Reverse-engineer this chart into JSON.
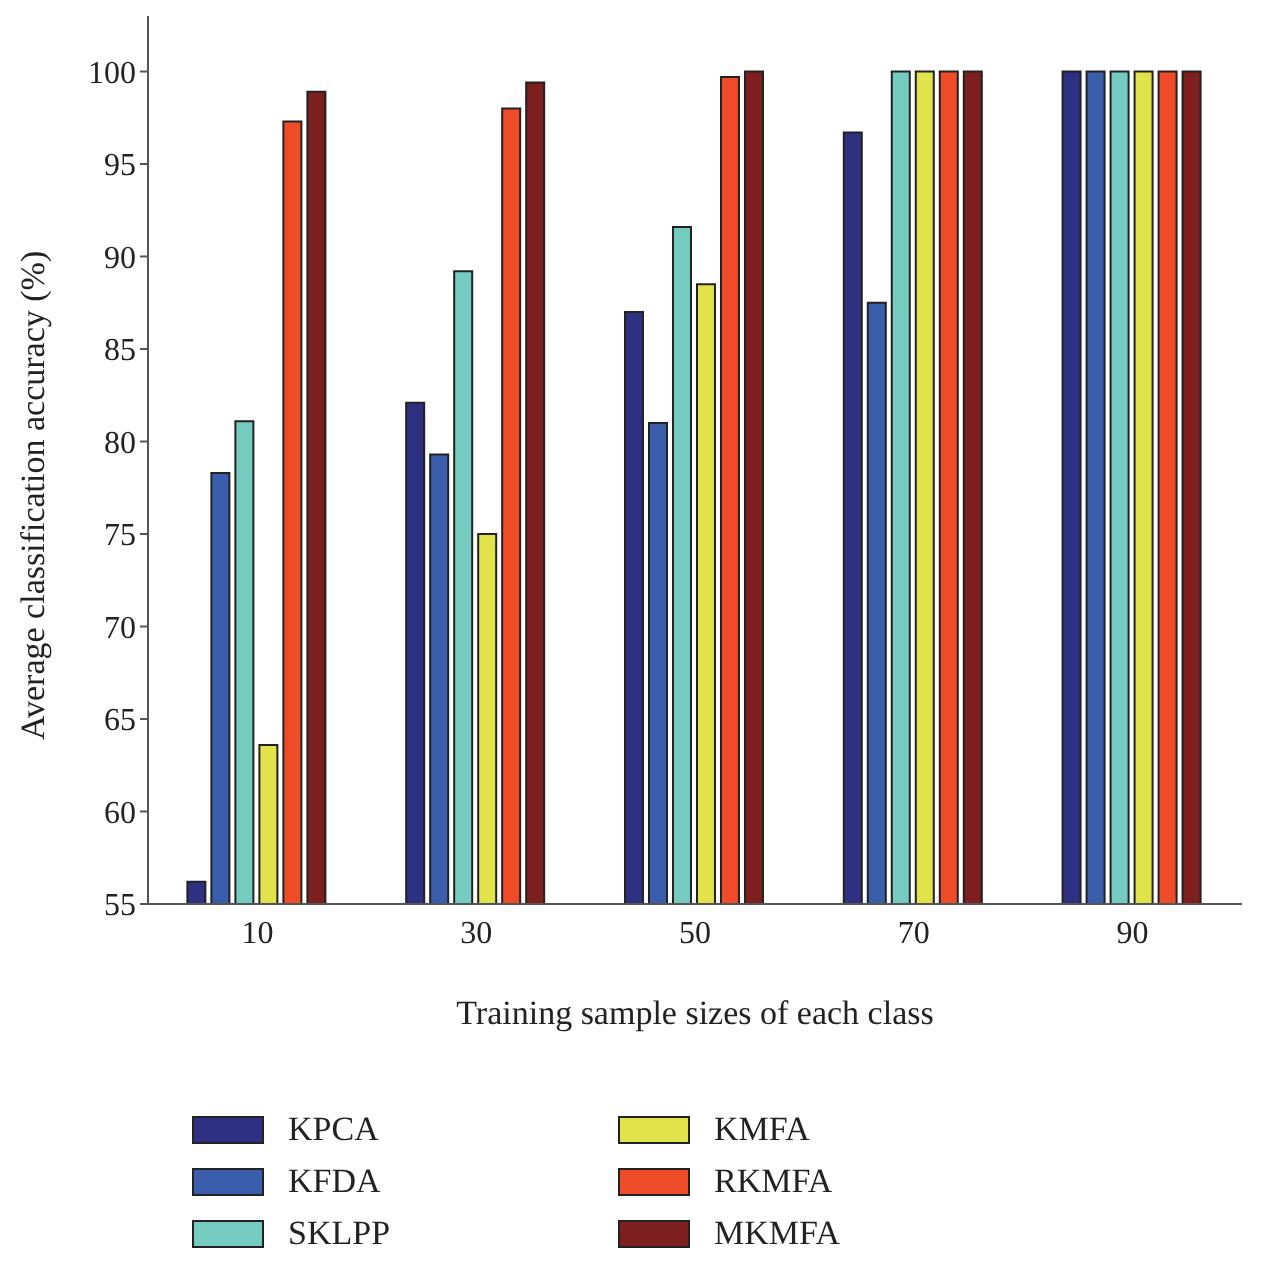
{
  "chart_data": {
    "type": "bar",
    "xlabel": "Training sample sizes of each class",
    "ylabel": "Average classification accuracy (%)",
    "categories": [
      "10",
      "30",
      "50",
      "70",
      "90"
    ],
    "series": [
      {
        "name": "KPCA",
        "color": "#2e3082",
        "values": [
          56.2,
          82.1,
          87.0,
          96.7,
          100
        ]
      },
      {
        "name": "KFDA",
        "color": "#3a5eab",
        "values": [
          78.3,
          79.3,
          81.0,
          87.5,
          100
        ]
      },
      {
        "name": "SKLPP",
        "color": "#76cbc1",
        "values": [
          81.1,
          89.2,
          91.6,
          100,
          100
        ]
      },
      {
        "name": "KMFA",
        "color": "#e2e24a",
        "values": [
          63.6,
          75.0,
          88.5,
          100,
          100
        ]
      },
      {
        "name": "RKMFA",
        "color": "#ef4b28",
        "values": [
          97.3,
          98.0,
          99.7,
          100,
          100
        ]
      },
      {
        "name": "MKMFA",
        "color": "#7d1e1f",
        "values": [
          98.9,
          99.4,
          100,
          100,
          100
        ]
      }
    ],
    "ylim": [
      55,
      103
    ],
    "yticks": [
      55,
      60,
      65,
      70,
      75,
      80,
      85,
      90,
      95,
      100
    ],
    "grid": false,
    "legend": "bottom"
  }
}
